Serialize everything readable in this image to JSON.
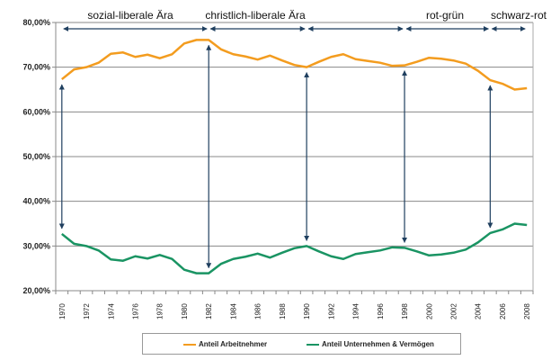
{
  "chart_data": {
    "type": "line",
    "x": [
      1970,
      1971,
      1972,
      1973,
      1974,
      1975,
      1976,
      1977,
      1978,
      1979,
      1980,
      1981,
      1982,
      1983,
      1984,
      1985,
      1986,
      1987,
      1988,
      1989,
      1990,
      1991,
      1992,
      1993,
      1994,
      1995,
      1996,
      1997,
      1998,
      1999,
      2000,
      2001,
      2002,
      2003,
      2004,
      2005,
      2006,
      2007,
      2008
    ],
    "xticks": [
      "1970",
      "1972",
      "1974",
      "1976",
      "1978",
      "1980",
      "1982",
      "1984",
      "1986",
      "1988",
      "1990",
      "1992",
      "1994",
      "1996",
      "1998",
      "2000",
      "2002",
      "2004",
      "2006",
      "2008"
    ],
    "yticks": [
      "20,00%",
      "30,00%",
      "40,00%",
      "50,00%",
      "60,00%",
      "70,00%",
      "80,00%"
    ],
    "ylim": [
      20,
      80
    ],
    "grid": true,
    "legend_position": "bottom",
    "series": [
      {
        "name": "Anteil Arbeitnehmer",
        "color": "#f39c1f",
        "values": [
          67.3,
          69.5,
          70,
          71,
          73,
          73.3,
          72.3,
          72.8,
          72,
          72.9,
          75.3,
          76.1,
          76.1,
          74,
          72.9,
          72.4,
          71.7,
          72.6,
          71.5,
          70.5,
          70,
          71.2,
          72.3,
          72.9,
          71.8,
          71.4,
          71,
          70.3,
          70.4,
          71.2,
          72.1,
          71.9,
          71.5,
          70.8,
          69.2,
          67.1,
          66.3,
          65,
          65.3
        ]
      },
      {
        "name": "Anteil Unternehmen & Vermögen",
        "color": "#1a9463",
        "values": [
          32.7,
          30.5,
          30,
          29,
          27,
          26.7,
          27.7,
          27.2,
          28,
          27.1,
          24.7,
          23.9,
          23.9,
          26,
          27.1,
          27.6,
          28.3,
          27.4,
          28.5,
          29.5,
          30,
          28.8,
          27.7,
          27.1,
          28.2,
          28.6,
          29,
          29.7,
          29.6,
          28.8,
          27.9,
          28.1,
          28.5,
          29.2,
          30.8,
          32.9,
          33.7,
          35,
          34.7
        ]
      }
    ],
    "annotations": [
      {
        "label": "sozial-liberale Ära",
        "from": 1970,
        "to": 1982
      },
      {
        "label": "christlich-liberale Ära",
        "from": 1982,
        "to": 1990
      },
      {
        "label": "rot-grün",
        "from": 1998,
        "to": 2005
      },
      {
        "label": "schwarz-rot",
        "from": 2005,
        "to": 2008
      }
    ],
    "middle_period": {
      "from": 1990,
      "to": 1998
    },
    "gap_arrows_at": [
      1970,
      1982,
      1990,
      1998,
      2005
    ],
    "arrow_color": "#1f3f5f"
  }
}
